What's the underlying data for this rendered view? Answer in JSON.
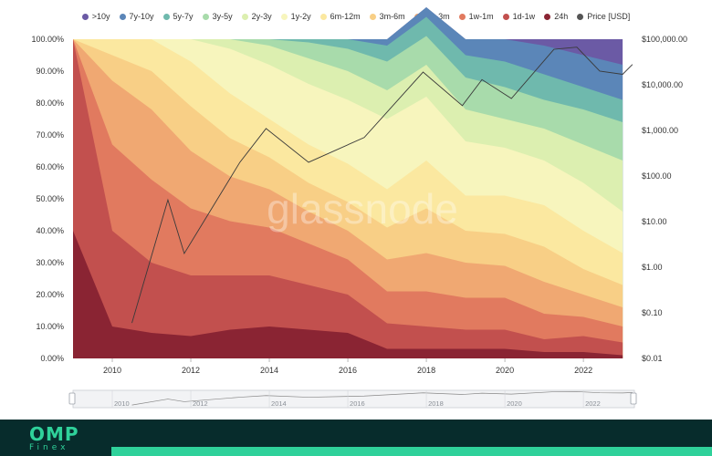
{
  "chart_data": {
    "type": "area",
    "legend_position": "top-center",
    "legend": [
      {
        "name": ">10y",
        "color": "#6b5aa5"
      },
      {
        "name": "7y-10y",
        "color": "#5b86b8"
      },
      {
        "name": "5y-7y",
        "color": "#6fb9ad"
      },
      {
        "name": "3y-5y",
        "color": "#a8dbab"
      },
      {
        "name": "2y-3y",
        "color": "#dcefb0"
      },
      {
        "name": "1y-2y",
        "color": "#f7f5bd"
      },
      {
        "name": "6m-12m",
        "color": "#fbe8a0"
      },
      {
        "name": "3m-6m",
        "color": "#f8cf86"
      },
      {
        "name": "1m-3m",
        "color": "#f0a872"
      },
      {
        "name": "1w-1m",
        "color": "#e17a5f"
      },
      {
        "name": "1d-1w",
        "color": "#c2504e"
      },
      {
        "name": "24h",
        "color": "#8a2433"
      },
      {
        "name": "Price [USD]",
        "color": "#555555"
      }
    ],
    "x": [
      "2009",
      "2010",
      "2011",
      "2012",
      "2013",
      "2014",
      "2015",
      "2016",
      "2017",
      "2018",
      "2019",
      "2020",
      "2021",
      "2022",
      "2023"
    ],
    "series": [
      {
        "name": ">10y",
        "values": [
          0,
          0,
          0,
          0,
          0,
          0,
          0,
          0,
          0,
          0,
          0,
          0,
          2,
          5,
          8
        ]
      },
      {
        "name": "7y-10y",
        "values": [
          0,
          0,
          0,
          0,
          0,
          0,
          0,
          0,
          2,
          3,
          5,
          7,
          9,
          10,
          11
        ]
      },
      {
        "name": "5y-7y",
        "values": [
          0,
          0,
          0,
          0,
          0,
          0,
          1,
          3,
          5,
          6,
          7,
          8,
          8,
          7,
          7
        ]
      },
      {
        "name": "3y-5y",
        "values": [
          0,
          0,
          0,
          0,
          0,
          2,
          5,
          7,
          9,
          9,
          10,
          10,
          9,
          11,
          12
        ]
      },
      {
        "name": "2y-3y",
        "values": [
          0,
          0,
          0,
          0,
          3,
          6,
          8,
          9,
          9,
          10,
          10,
          9,
          10,
          12,
          16
        ]
      },
      {
        "name": "1y-2y",
        "values": [
          0,
          0,
          0,
          7,
          14,
          17,
          19,
          20,
          22,
          20,
          17,
          15,
          14,
          15,
          13
        ]
      },
      {
        "name": "6m-12m",
        "values": [
          0,
          5,
          10,
          14,
          14,
          12,
          12,
          12,
          12,
          15,
          11,
          12,
          13,
          12,
          10
        ]
      },
      {
        "name": "3m-6m",
        "values": [
          0,
          8,
          12,
          14,
          12,
          10,
          9,
          9,
          10,
          14,
          10,
          10,
          11,
          8,
          7
        ]
      },
      {
        "name": "1m-3m",
        "values": [
          0,
          20,
          22,
          18,
          14,
          12,
          10,
          9,
          10,
          12,
          11,
          10,
          10,
          7,
          6
        ]
      },
      {
        "name": "1w-1m",
        "values": [
          0,
          27,
          26,
          21,
          17,
          15,
          13,
          11,
          10,
          11,
          10,
          10,
          8,
          6,
          5
        ]
      },
      {
        "name": "1d-1w",
        "values": [
          60,
          30,
          22,
          19,
          17,
          16,
          14,
          12,
          8,
          7,
          6,
          6,
          4,
          5,
          4
        ]
      },
      {
        "name": "24h",
        "values": [
          40,
          10,
          8,
          7,
          9,
          10,
          9,
          8,
          3,
          3,
          3,
          3,
          2,
          2,
          1
        ]
      }
    ],
    "price": {
      "name": "Price [USD]",
      "x": [
        "2010-07",
        "2011-06",
        "2011-11",
        "2013-04",
        "2013-12",
        "2015-01",
        "2016-06",
        "2017-12",
        "2018-12",
        "2019-06",
        "2020-03",
        "2021-04",
        "2021-11",
        "2022-06",
        "2023-01",
        "2023-04"
      ],
      "values": [
        0.06,
        30,
        2,
        200,
        1100,
        200,
        700,
        19000,
        3500,
        13000,
        5000,
        60000,
        67000,
        20000,
        17000,
        28000
      ]
    },
    "left_axis": {
      "ticks": [
        "0.00%",
        "10.00%",
        "20.00%",
        "30.00%",
        "40.00%",
        "50.00%",
        "60.00%",
        "70.00%",
        "80.00%",
        "90.00%",
        "100.00%"
      ],
      "ylim": [
        0,
        100
      ]
    },
    "right_axis": {
      "scale": "log",
      "ticks": [
        "$0.01",
        "$0.10",
        "$1.00",
        "$10.00",
        "$100.00",
        "$1,000.00",
        "$10,000.00",
        "$100,000.00"
      ]
    },
    "x_ticks": [
      "2010",
      "2012",
      "2014",
      "2016",
      "2018",
      "2020",
      "2022"
    ],
    "watermark": "glassnode"
  },
  "navigator": {
    "ticks": [
      "2010",
      "2012",
      "2014",
      "2016",
      "2018",
      "2020",
      "2022"
    ]
  },
  "brand": {
    "name": "OMP",
    "sub": "Finex"
  }
}
